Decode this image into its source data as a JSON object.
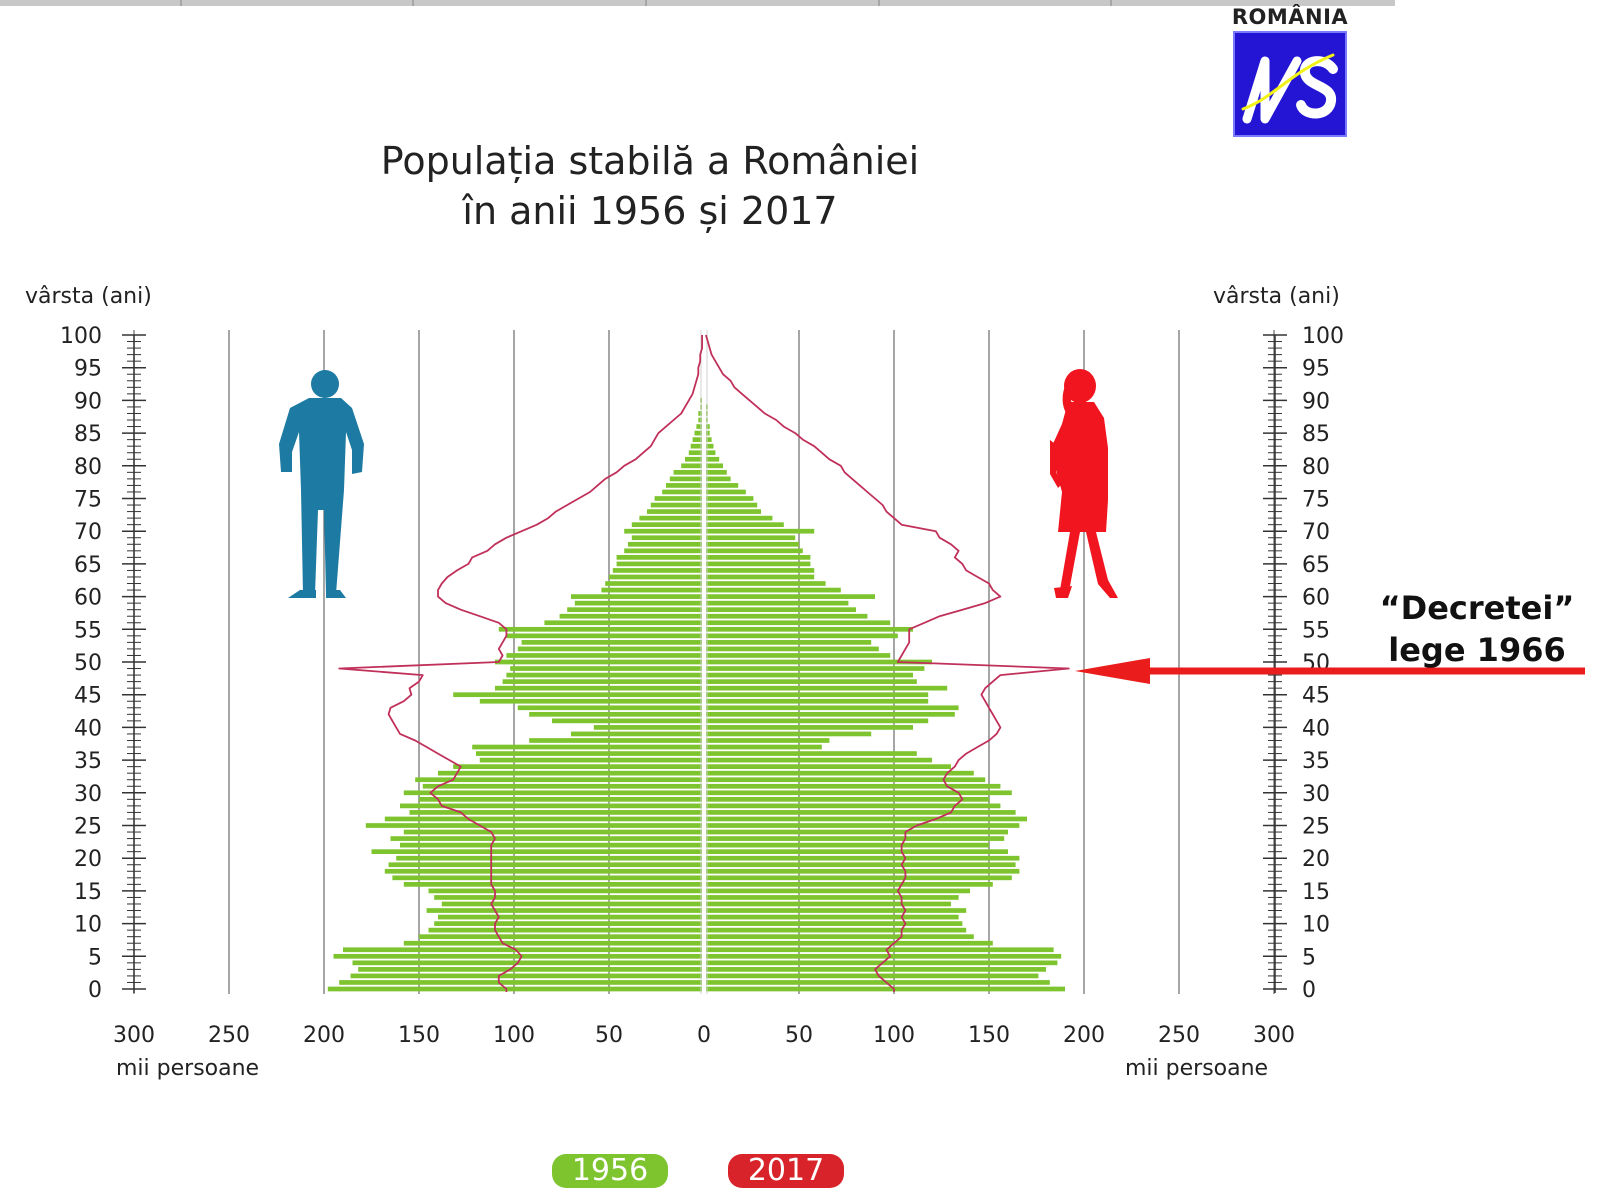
{
  "logo": {
    "country": "ROMÂNIA",
    "letters": "INS"
  },
  "title": {
    "line1": "Populația stabilă a României",
    "line2": "în anii 1956 și 2017"
  },
  "axes": {
    "left_caption": "vârsta (ani)",
    "right_caption": "vârsta (ani)",
    "left_unit": "mii persoane",
    "right_unit": "mii persoane"
  },
  "annotation": {
    "line1": "“Decretei”",
    "line2": "lege 1966"
  },
  "legend": {
    "series_1956": "1956",
    "series_2017": "2017"
  },
  "colors": {
    "bars_1956": "#7dc42f",
    "line_2017": "#c0305a",
    "arrow": "#ea1c1c",
    "male_icon": "#1d7aa3",
    "female_icon": "#f0151e"
  },
  "chart_data": {
    "type": "bar",
    "orientation": "horizontal population pyramid (males left, females right)",
    "title": "Populația stabilă a României în anii 1956 și 2017",
    "ylabel": "vârsta (ani)",
    "xlabel": "mii persoane",
    "age_ticks": [
      0,
      5,
      10,
      15,
      20,
      25,
      30,
      35,
      40,
      45,
      50,
      55,
      60,
      65,
      70,
      75,
      80,
      85,
      90,
      95,
      100
    ],
    "x_tick_labels": [
      "300",
      "250",
      "200",
      "150",
      "100",
      "50",
      "0",
      "50",
      "100",
      "150",
      "200",
      "250",
      "300"
    ],
    "xlim": [
      0,
      300
    ],
    "ylim": [
      0,
      100
    ],
    "grid": true,
    "ages": [
      0,
      1,
      2,
      3,
      4,
      5,
      6,
      7,
      8,
      9,
      10,
      11,
      12,
      13,
      14,
      15,
      16,
      17,
      18,
      19,
      20,
      21,
      22,
      23,
      24,
      25,
      26,
      27,
      28,
      29,
      30,
      31,
      32,
      33,
      34,
      35,
      36,
      37,
      38,
      39,
      40,
      41,
      42,
      43,
      44,
      45,
      46,
      47,
      48,
      49,
      50,
      51,
      52,
      53,
      54,
      55,
      56,
      57,
      58,
      59,
      60,
      61,
      62,
      63,
      64,
      65,
      66,
      67,
      68,
      69,
      70,
      71,
      72,
      73,
      74,
      75,
      76,
      77,
      78,
      79,
      80,
      81,
      82,
      83,
      84,
      85,
      86,
      87,
      88,
      89,
      90,
      91,
      92,
      93,
      94,
      95,
      96,
      97,
      98,
      99,
      100
    ],
    "series": [
      {
        "name": "1956",
        "sex": "male",
        "values": [
          198,
          192,
          186,
          182,
          185,
          195,
          190,
          158,
          150,
          145,
          142,
          140,
          146,
          138,
          142,
          145,
          158,
          164,
          168,
          166,
          162,
          175,
          160,
          165,
          158,
          178,
          168,
          155,
          160,
          150,
          158,
          148,
          152,
          140,
          132,
          118,
          120,
          122,
          92,
          70,
          58,
          80,
          92,
          98,
          118,
          132,
          110,
          106,
          104,
          102,
          110,
          104,
          98,
          96,
          104,
          108,
          84,
          76,
          72,
          68,
          70,
          54,
          52,
          50,
          48,
          46,
          46,
          42,
          40,
          38,
          42,
          38,
          34,
          30,
          28,
          26,
          22,
          20,
          18,
          16,
          12,
          10,
          8,
          7,
          6,
          5,
          4,
          3,
          3,
          2,
          2,
          1,
          1,
          1,
          1,
          1,
          0,
          0,
          0,
          0,
          0
        ]
      },
      {
        "name": "1956",
        "sex": "female",
        "values": [
          190,
          182,
          176,
          180,
          186,
          188,
          184,
          152,
          142,
          138,
          136,
          134,
          138,
          130,
          134,
          140,
          152,
          162,
          166,
          164,
          166,
          160,
          150,
          158,
          160,
          166,
          170,
          164,
          156,
          150,
          162,
          156,
          148,
          142,
          130,
          120,
          112,
          62,
          66,
          88,
          110,
          118,
          132,
          134,
          118,
          118,
          128,
          112,
          110,
          116,
          120,
          98,
          92,
          88,
          102,
          110,
          98,
          86,
          80,
          76,
          90,
          72,
          64,
          58,
          58,
          56,
          56,
          52,
          50,
          48,
          58,
          42,
          36,
          30,
          28,
          26,
          22,
          18,
          14,
          12,
          10,
          8,
          6,
          5,
          4,
          3,
          3,
          2,
          2,
          2,
          1,
          1,
          1,
          1,
          1,
          1,
          0,
          0,
          0,
          0,
          0
        ]
      },
      {
        "name": "2017",
        "sex": "male",
        "values": [
          104,
          108,
          108,
          102,
          98,
          96,
          99,
          106,
          108,
          110,
          110,
          108,
          110,
          112,
          110,
          110,
          112,
          112,
          112,
          112,
          112,
          112,
          112,
          110,
          112,
          118,
          124,
          128,
          138,
          140,
          144,
          140,
          132,
          130,
          128,
          134,
          140,
          146,
          152,
          160,
          162,
          164,
          166,
          165,
          158,
          154,
          155,
          150,
          148,
          192,
          108,
          106,
          108,
          106,
          104,
          104,
          108,
          118,
          128,
          136,
          140,
          140,
          138,
          135,
          130,
          124,
          122,
          114,
          110,
          104,
          96,
          88,
          82,
          78,
          72,
          66,
          60,
          56,
          52,
          46,
          42,
          36,
          32,
          28,
          26,
          24,
          20,
          16,
          12,
          10,
          8,
          6,
          5,
          4,
          3,
          3,
          2,
          2,
          1,
          1,
          1
        ]
      },
      {
        "name": "2017",
        "sex": "female",
        "values": [
          100,
          96,
          92,
          90,
          94,
          98,
          96,
          100,
          104,
          104,
          106,
          104,
          106,
          104,
          104,
          102,
          104,
          106,
          106,
          104,
          106,
          104,
          104,
          106,
          106,
          112,
          122,
          130,
          132,
          136,
          134,
          128,
          126,
          128,
          132,
          134,
          138,
          144,
          150,
          154,
          156,
          154,
          152,
          150,
          148,
          146,
          148,
          152,
          156,
          192,
          102,
          104,
          106,
          108,
          108,
          108,
          116,
          124,
          136,
          148,
          156,
          152,
          150,
          144,
          138,
          136,
          132,
          134,
          130,
          124,
          122,
          104,
          100,
          96,
          94,
          90,
          86,
          82,
          78,
          74,
          72,
          66,
          62,
          58,
          52,
          48,
          42,
          38,
          32,
          28,
          24,
          20,
          16,
          14,
          10,
          8,
          6,
          4,
          3,
          2,
          1
        ]
      }
    ]
  }
}
